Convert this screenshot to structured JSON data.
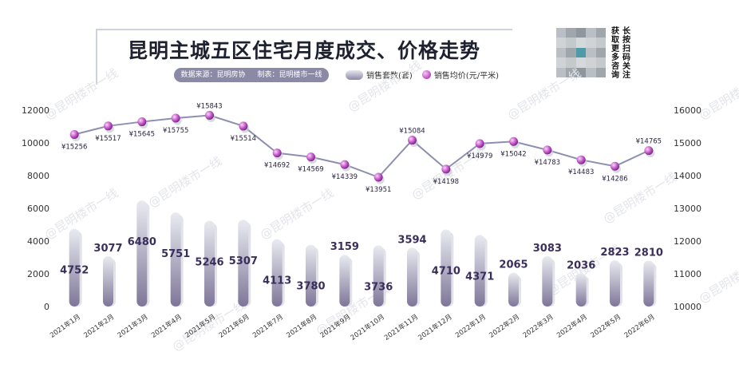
{
  "header": {
    "title": "昆明主城五区住宅月度成交、价格走势",
    "source": "数据来源：昆明房协",
    "maker": "制表：昆明楼市一线",
    "qr_text": [
      "长按扫码关注",
      "获取更多咨询"
    ],
    "qr_icon": "qr-code-icon"
  },
  "watermark": "@昆明楼市一线",
  "colors": {
    "bar_top": "#e9ebf1",
    "bar_bottom": "#7e7698",
    "line": "#8d8fb0",
    "dot": "#c052c6",
    "text": "#3a2f5a"
  },
  "chart_data": {
    "type": "bar",
    "categories": [
      "2021年1月",
      "2021年2月",
      "2021年3月",
      "2021年4月",
      "2021年5月",
      "2021年6月",
      "2021年7月",
      "2021年8月",
      "2021年9月",
      "2021年10月",
      "2021年11月",
      "2021年12月",
      "2022年1月",
      "2022年2月",
      "2022年3月",
      "2022年4月",
      "2022年5月",
      "2022年6月"
    ],
    "series": [
      {
        "name": "销售套数(套)",
        "type": "bar",
        "axis": "left",
        "values": [
          4752,
          3077,
          6480,
          5751,
          5246,
          5307,
          4113,
          3780,
          3159,
          3736,
          3594,
          4710,
          4371,
          2065,
          3083,
          2036,
          2823,
          2810
        ]
      },
      {
        "name": "销售均价(元/平米)",
        "type": "line",
        "axis": "right",
        "values": [
          15256,
          15517,
          15645,
          15755,
          15843,
          15514,
          14692,
          14569,
          14339,
          13951,
          15084,
          14198,
          14979,
          15042,
          14783,
          14483,
          14286,
          14765
        ],
        "labels": [
          "¥15256",
          "¥15517",
          "¥15645",
          "¥15755",
          "¥15843",
          "¥15514",
          "¥14692",
          "¥14569",
          "¥14339",
          "¥13951",
          "¥15084",
          "¥14198",
          "¥14979",
          "¥15042",
          "¥14783",
          "¥14483",
          "¥14286",
          "¥14765"
        ]
      }
    ],
    "ylim": [
      0,
      12000
    ],
    "yticks": [
      0,
      2000,
      4000,
      6000,
      8000,
      10000,
      12000
    ],
    "y2lim": [
      10000,
      16000
    ],
    "y2ticks": [
      10000,
      11000,
      12000,
      13000,
      14000,
      15000,
      16000
    ],
    "legend_position": "top-center",
    "grid": false
  }
}
